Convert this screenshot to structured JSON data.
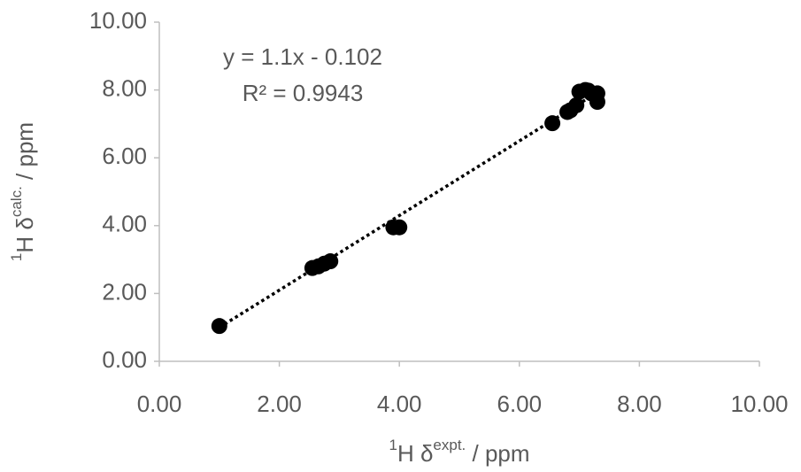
{
  "chart_data": {
    "type": "scatter",
    "x": [
      1.0,
      2.55,
      2.65,
      2.75,
      2.85,
      3.9,
      4.0,
      6.55,
      6.8,
      6.85,
      6.95,
      7.0,
      7.1,
      7.15,
      7.2,
      7.3,
      7.3
    ],
    "values": [
      1.04,
      2.75,
      2.8,
      2.88,
      2.95,
      3.95,
      3.95,
      7.02,
      7.35,
      7.4,
      7.55,
      7.95,
      8.0,
      7.98,
      7.9,
      7.9,
      7.65
    ],
    "color": "#000000",
    "xlim": [
      0,
      10
    ],
    "ylim": [
      0,
      10
    ],
    "xticks": [
      {
        "value": 0,
        "label": "0.00"
      },
      {
        "value": 2,
        "label": "2.00"
      },
      {
        "value": 4,
        "label": "4.00"
      },
      {
        "value": 6,
        "label": "6.00"
      },
      {
        "value": 8,
        "label": "8.00"
      },
      {
        "value": 10,
        "label": "10.00"
      }
    ],
    "yticks": [
      {
        "value": 0,
        "label": "0.00"
      },
      {
        "value": 2,
        "label": "2.00"
      },
      {
        "value": 4,
        "label": "4.00"
      },
      {
        "value": 6,
        "label": "6.00"
      },
      {
        "value": 8,
        "label": "8.00"
      },
      {
        "value": 10,
        "label": "10.00"
      }
    ],
    "x_label": [
      "1",
      "H δ",
      "expt.",
      " / ppm"
    ],
    "y_label": [
      "1",
      "H δ",
      "calc.",
      " / ppm"
    ],
    "trendline": {
      "equation": "y = 1.1x - 0.102",
      "r_squared": "R² = 0.9943",
      "slope": 1.1,
      "intercept": -0.102
    }
  }
}
